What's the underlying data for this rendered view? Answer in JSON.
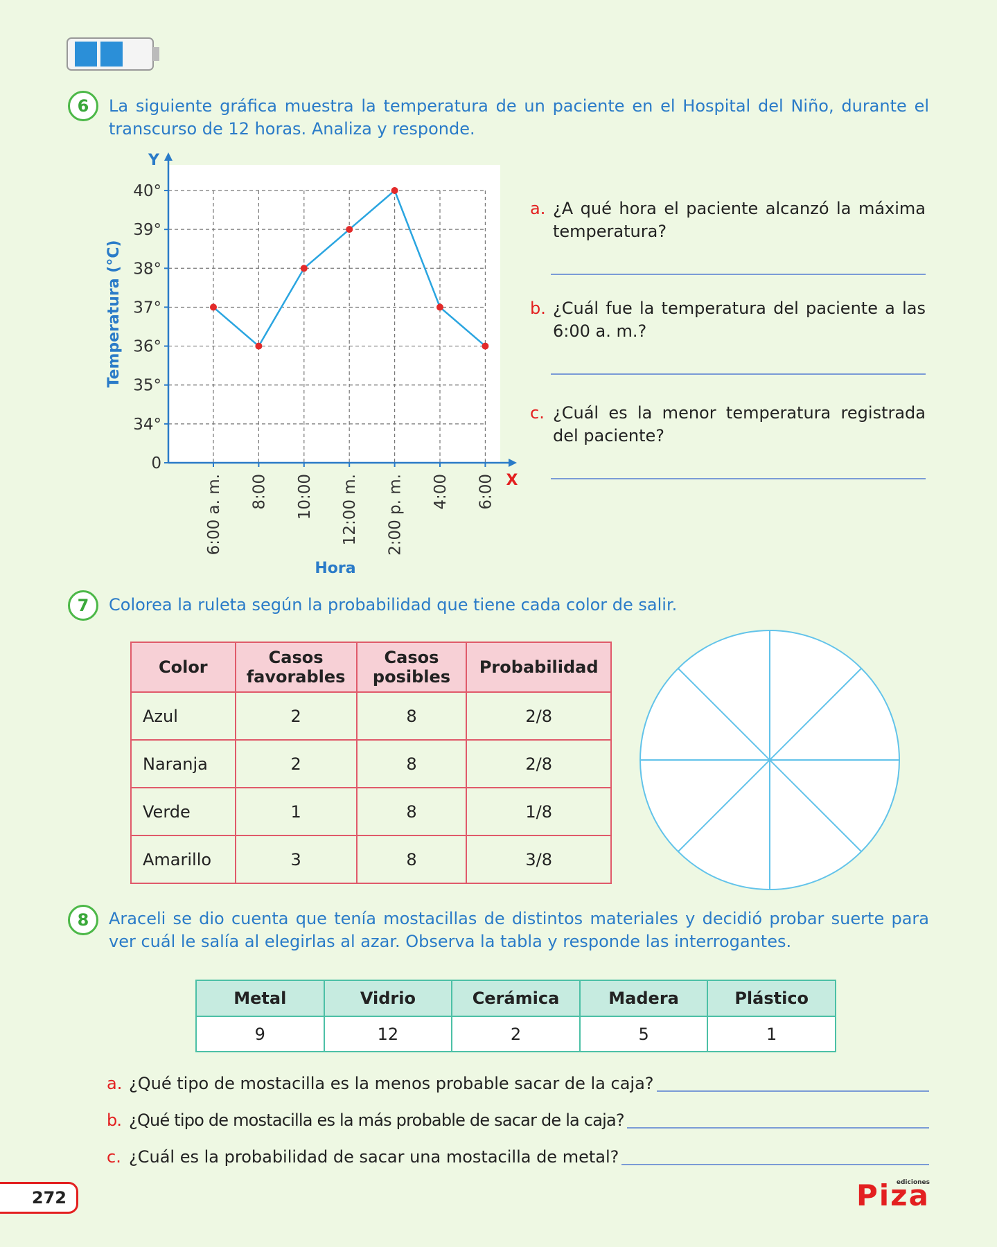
{
  "chart_data": {
    "type": "line",
    "y_label": "Temperatura (°C)",
    "x_label": "Hora",
    "y_axis_letter": "Y",
    "x_axis_letter": "X",
    "categories": [
      "6:00 a. m.",
      "8:00",
      "10:00",
      "12:00 m.",
      "2:00 p. m.",
      "4:00",
      "6:00"
    ],
    "values": [
      37,
      36,
      38,
      39,
      40,
      37,
      36
    ],
    "color": "#2aa5e0",
    "marker_color": "#e32a2a",
    "ylim": [
      0,
      40
    ],
    "axis_break": true,
    "yticks": [
      0,
      {
        "value": 34,
        "label": "34°"
      },
      {
        "value": 35,
        "label": "35°"
      },
      {
        "value": 36,
        "label": "36°"
      },
      {
        "value": 37,
        "label": "37°"
      },
      {
        "value": 38,
        "label": "38°"
      },
      {
        "value": 39,
        "label": "39°"
      },
      {
        "value": 40,
        "label": "40°"
      }
    ],
    "grid": true
  },
  "exercise_6": {
    "number": "6",
    "text": "La siguiente gráfica muestra la temperatura de un paciente en el Hospital del Niño, durante el transcurso de 12 horas. Analiza y responde.",
    "questions": [
      {
        "letter": "a.",
        "text": "¿A qué hora el paciente alcanzó la máxima temperatura?"
      },
      {
        "letter": "b.",
        "text": "¿Cuál fue la temperatura del paciente a las 6:00 a. m.?"
      },
      {
        "letter": "c.",
        "text": "¿Cuál es la menor temperatura registrada del paciente?"
      }
    ]
  },
  "exercise_7": {
    "number": "7",
    "text": "Colorea la ruleta según la probabilidad que tiene cada color de salir.",
    "table": {
      "header": [
        "Color",
        "Casos favorables",
        "Casos posibles",
        "Probabilidad"
      ],
      "rows": [
        [
          "Azul",
          "2",
          "8",
          "2/8"
        ],
        [
          "Naranja",
          "2",
          "8",
          "2/8"
        ],
        [
          "Verde",
          "1",
          "8",
          "1/8"
        ],
        [
          "Amarillo",
          "3",
          "8",
          "3/8"
        ]
      ]
    }
  },
  "exercise_8": {
    "number": "8",
    "text": "Araceli se dio cuenta que tenía mostacillas de distintos materiales y decidió probar suerte para ver cuál le salía al elegirlas al azar. Observa la tabla y responde las interrogantes.",
    "table": {
      "header": [
        "Metal",
        "Vidrio",
        "Cerámica",
        "Madera",
        "Plástico"
      ],
      "rows": [
        [
          "9",
          "12",
          "2",
          "5",
          "1"
        ]
      ]
    },
    "questions": [
      {
        "letter": "a.",
        "text": "¿Qué tipo de mostacilla es la menos probable sacar de la caja?"
      },
      {
        "letter": "b.",
        "text": "¿Qué tipo de mostacilla es la más probable de sacar de la caja?"
      },
      {
        "letter": "c.",
        "text": "¿Cuál es la probabilidad de sacar una mostacilla de metal?"
      }
    ]
  },
  "footer": {
    "page_number": "272",
    "brand_small": "ediciones",
    "brand": "Piza"
  }
}
